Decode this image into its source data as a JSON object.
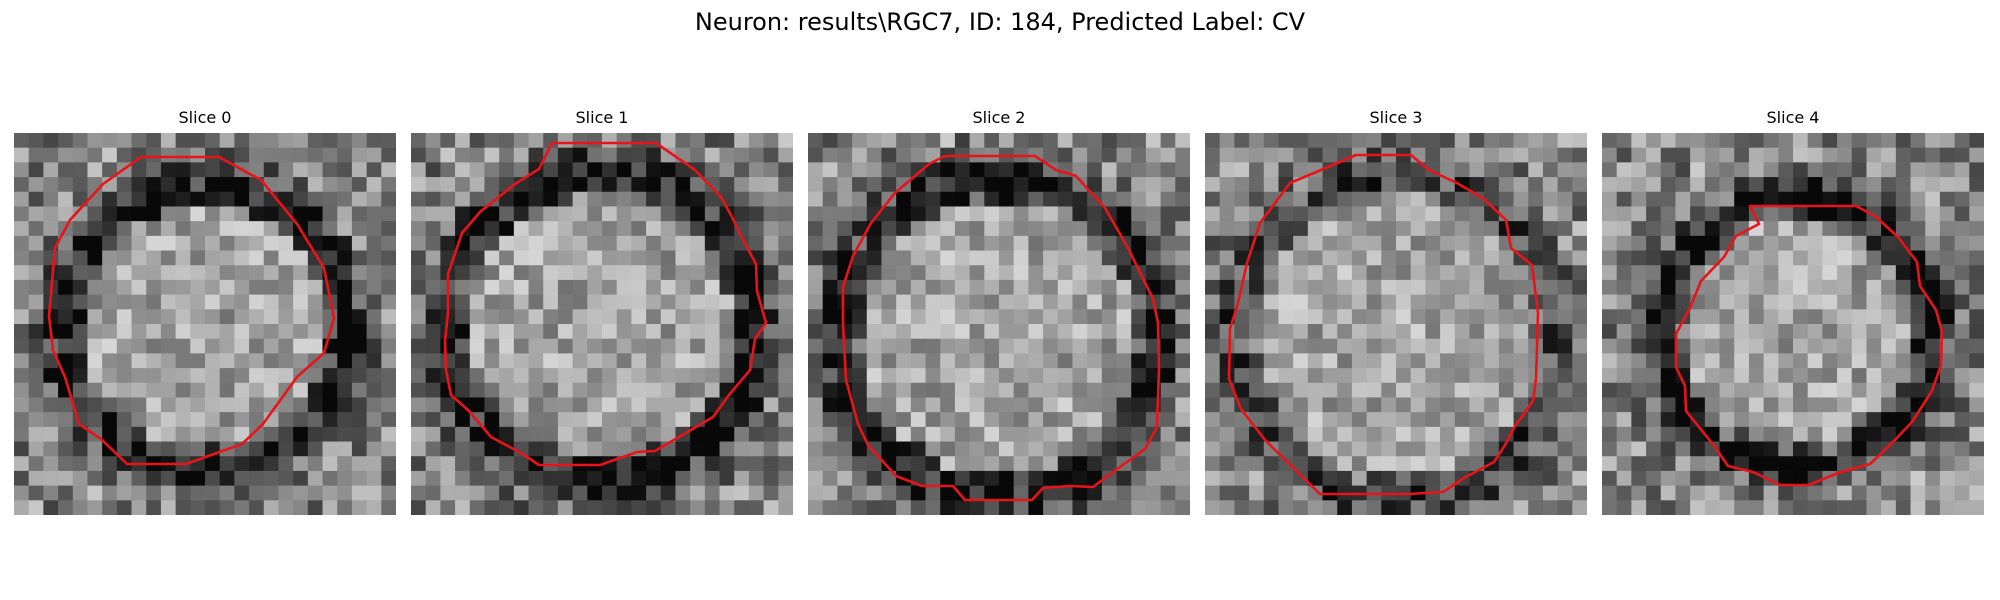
{
  "figure": {
    "title": "Neuron: results\\RGC7, ID: 184, Predicted Label: CV"
  },
  "overlay": {
    "contour_color": "#e8141a"
  },
  "slices": [
    {
      "title": "Slice 0"
    },
    {
      "title": "Slice 1"
    },
    {
      "title": "Slice 2"
    },
    {
      "title": "Slice 3"
    },
    {
      "title": "Slice 4"
    }
  ]
}
